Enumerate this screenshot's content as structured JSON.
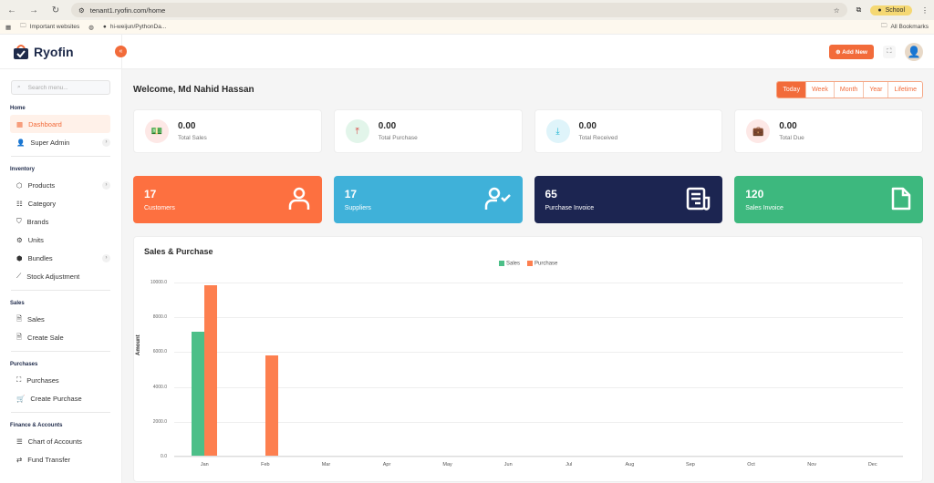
{
  "browser": {
    "url": "tenant1.ryofin.com/home",
    "profile": "School",
    "bookmarks": [
      "Important websites",
      "hi-weijun/PythonDa..."
    ],
    "all_bookmarks": "All Bookmarks"
  },
  "sidebar": {
    "logo": "Ryofin",
    "search_placeholder": "Search menu...",
    "sections": [
      {
        "title": "Home",
        "items": [
          {
            "label": "Dashboard",
            "active": true
          },
          {
            "label": "Super Admin",
            "chev": true
          }
        ]
      },
      {
        "title": "Inventory",
        "items": [
          {
            "label": "Products",
            "chev": true
          },
          {
            "label": "Category"
          },
          {
            "label": "Brands"
          },
          {
            "label": "Units"
          },
          {
            "label": "Bundles",
            "chev": true
          },
          {
            "label": "Stock Adjustment"
          }
        ]
      },
      {
        "title": "Sales",
        "items": [
          {
            "label": "Sales"
          },
          {
            "label": "Create Sale"
          }
        ]
      },
      {
        "title": "Purchases",
        "items": [
          {
            "label": "Purchases"
          },
          {
            "label": "Create Purchase"
          }
        ]
      },
      {
        "title": "Finance & Accounts",
        "items": [
          {
            "label": "Chart of Accounts"
          },
          {
            "label": "Fund Transfer"
          }
        ]
      }
    ]
  },
  "topbar": {
    "add_new": "⊕ Add New"
  },
  "welcome": "Welcome, Md Nahid Hassan",
  "periods": [
    "Today",
    "Week",
    "Month",
    "Year",
    "Lifetime"
  ],
  "stats": [
    {
      "value": "0.00",
      "label": "Total Sales",
      "icon": "💵",
      "bg": "#fde8e6",
      "fg": "#2fa36b"
    },
    {
      "value": "0.00",
      "label": "Total Purchase",
      "icon": "⤒",
      "bg": "#e2f5ea",
      "fg": "#d9534f"
    },
    {
      "value": "0.00",
      "label": "Total Received",
      "icon": "⤓",
      "bg": "#dff4fa",
      "fg": "#1fb5d3"
    },
    {
      "value": "0.00",
      "label": "Total Due",
      "icon": "💼",
      "bg": "#fde8e6",
      "fg": "#f0903a"
    }
  ],
  "counts": [
    {
      "value": "17",
      "label": "Customers",
      "color": "#fd7040",
      "icon": "customer-icon"
    },
    {
      "value": "17",
      "label": "Suppliers",
      "color": "#3fb1d9",
      "icon": "supplier-icon"
    },
    {
      "value": "65",
      "label": "Purchase Invoice",
      "color": "#1c2551",
      "icon": "invoice-icon"
    },
    {
      "value": "120",
      "label": "Sales Invoice",
      "color": "#3db87e",
      "icon": "document-icon"
    }
  ],
  "chart_data": {
    "type": "bar",
    "title": "Sales & Purchase",
    "xlabel": "",
    "ylabel": "Amount",
    "ylim": [
      0,
      10000
    ],
    "yticks": [
      "10000.0",
      "8000.0",
      "6000.0",
      "4000.0",
      "2000.0",
      "0.0"
    ],
    "categories": [
      "Jan",
      "Feb",
      "Mar",
      "Apr",
      "May",
      "Jun",
      "Jul",
      "Aug",
      "Sep",
      "Oct",
      "Nov",
      "Dec"
    ],
    "series": [
      {
        "name": "Sales",
        "color": "#4cbf88",
        "values": [
          7100,
          0,
          0,
          0,
          0,
          0,
          0,
          0,
          0,
          0,
          0,
          0
        ]
      },
      {
        "name": "Purchase",
        "color": "#fd7f4f",
        "values": [
          9800,
          5750,
          0,
          0,
          0,
          0,
          0,
          0,
          0,
          0,
          0,
          0
        ]
      }
    ],
    "legend_position": "top"
  }
}
